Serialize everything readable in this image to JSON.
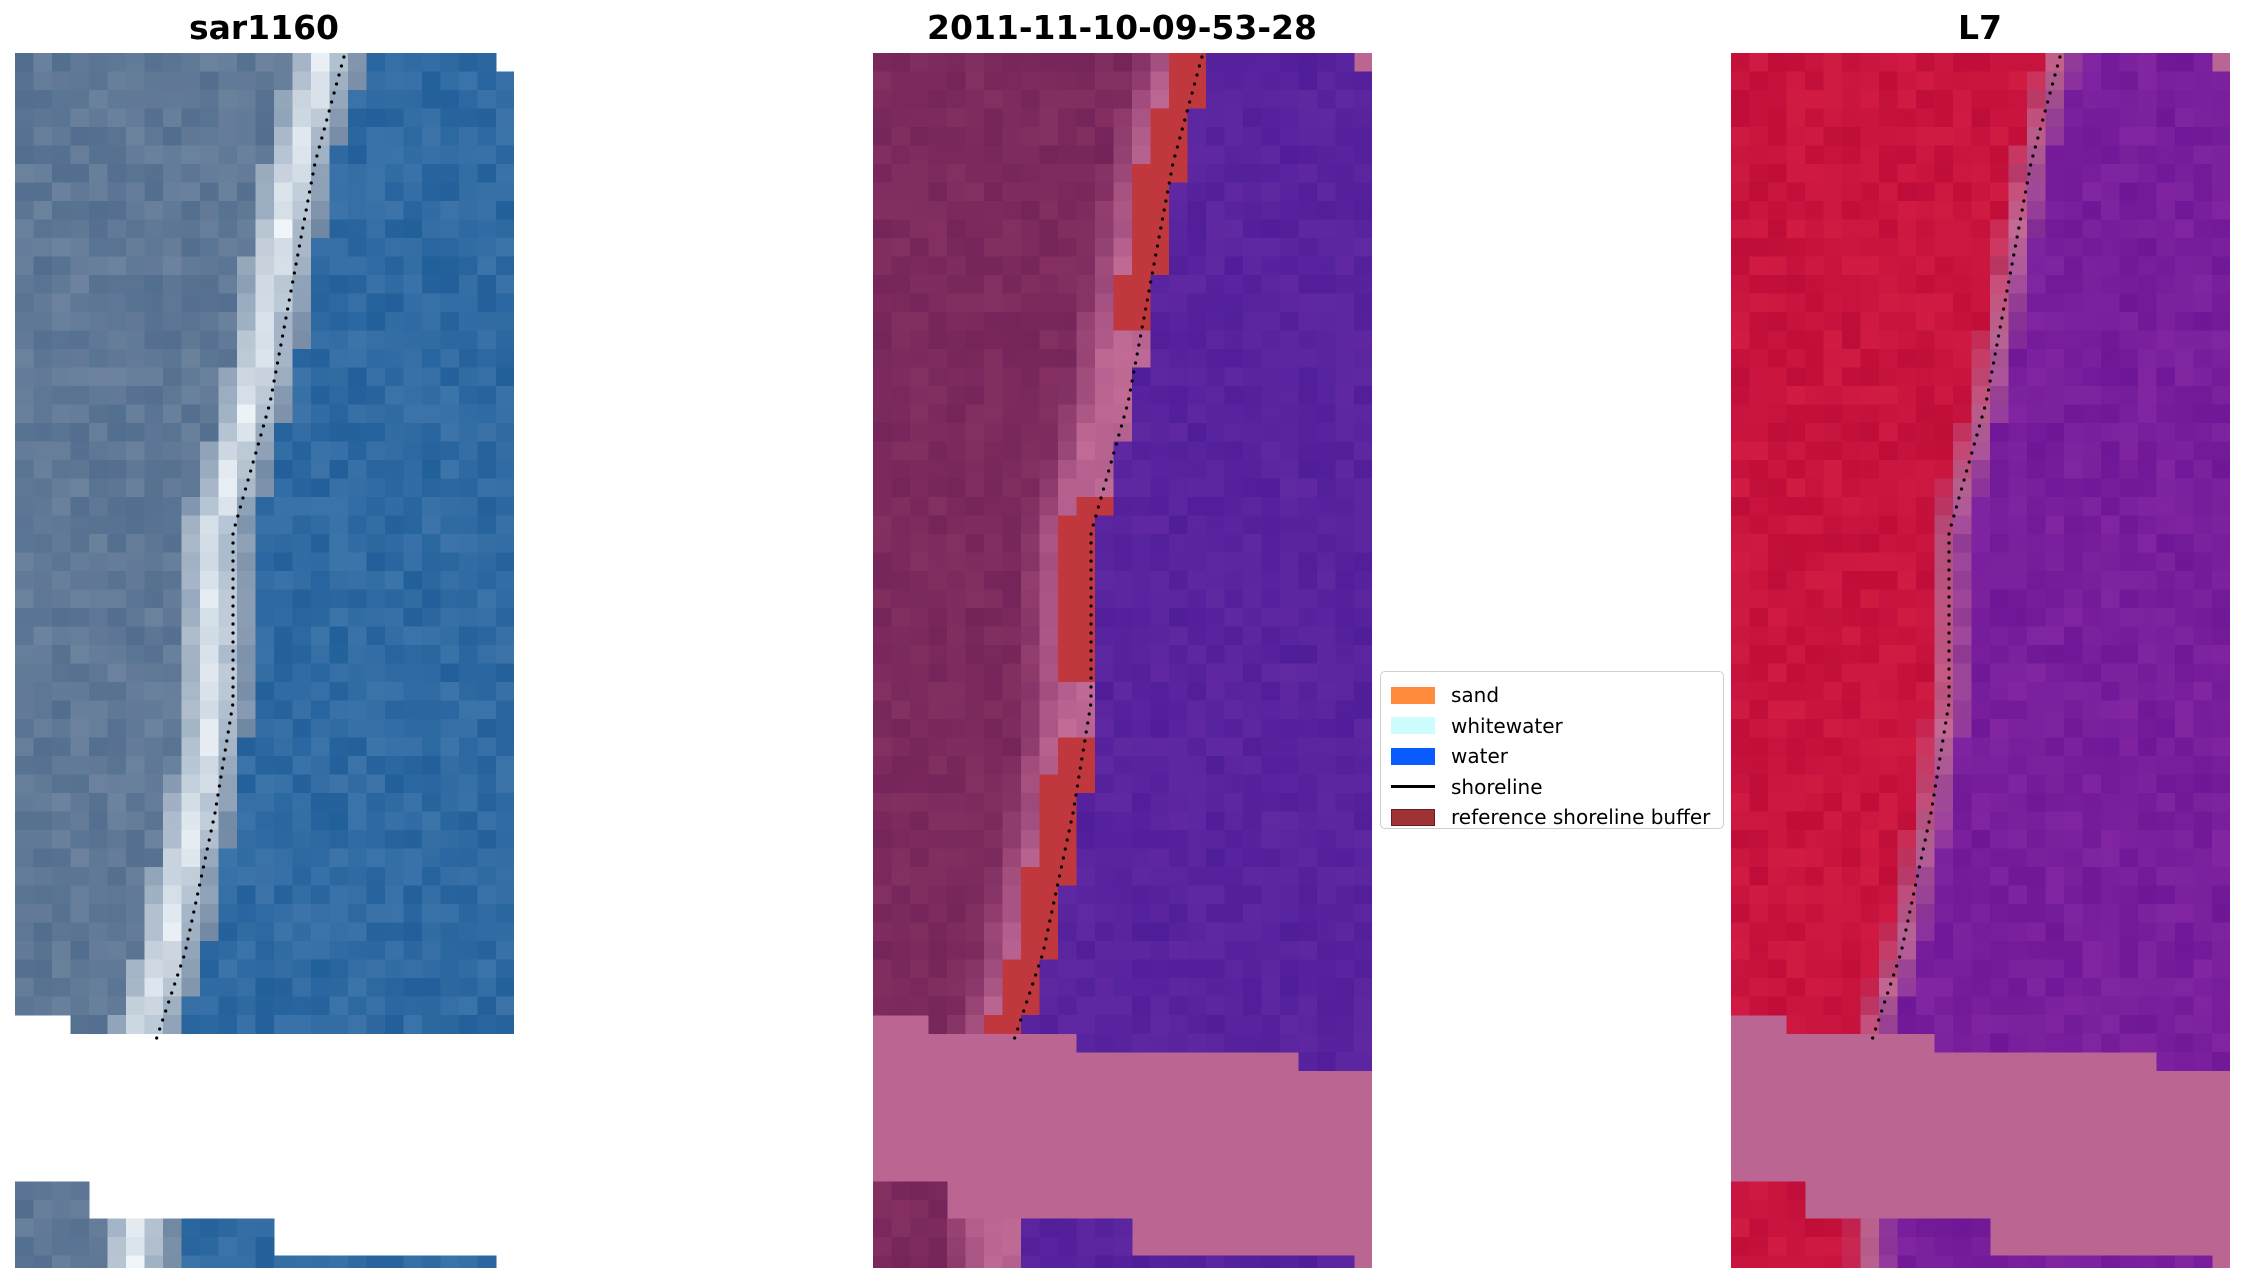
{
  "panels": [
    {
      "title": "sar1160",
      "style": "rgb"
    },
    {
      "title": "2011-11-10-09-53-28",
      "style": "classified"
    },
    {
      "title": "L7",
      "style": "falsecolor"
    }
  ],
  "legend": {
    "items": [
      {
        "label": "sand",
        "color": "#ff8c3d",
        "kind": "patch"
      },
      {
        "label": "whitewater",
        "color": "#ccfcfc",
        "kind": "patch"
      },
      {
        "label": "water",
        "color": "#0a5cff",
        "kind": "patch"
      },
      {
        "label": "shoreline",
        "color": "#000000",
        "kind": "line"
      },
      {
        "label": "reference shoreline buffer",
        "color": "#9e3236",
        "kind": "patch"
      }
    ]
  },
  "colors": {
    "rgb_land": "#5f7896",
    "rgb_water": "#2f6aa2",
    "rgb_surf": "#e4ecf2",
    "class_land": "#7c2a5e",
    "class_pink": "#ba6592",
    "class_water": "#58239e",
    "class_buffer": "#c0373e",
    "fc_land": "#c8143e",
    "fc_pink": "#ba6592",
    "fc_water": "#781e9c",
    "shoreline": "#000000"
  }
}
